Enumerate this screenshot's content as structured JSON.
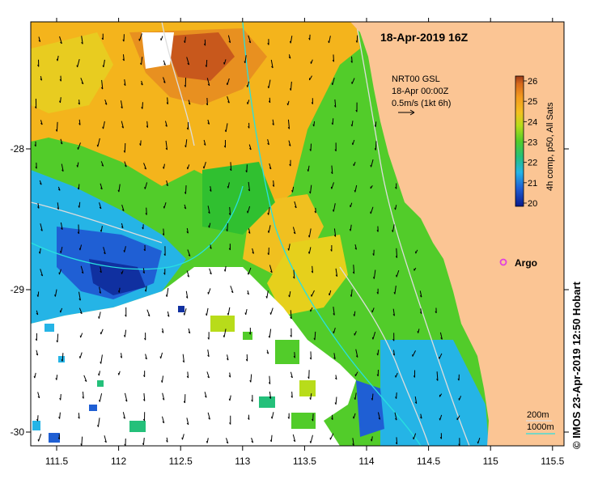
{
  "title": "18-Apr-2019 16Z",
  "velocity_legend": {
    "line1": "NRT00 GSL",
    "line2": "18-Apr 00:00Z",
    "line3": "0.5m/s (1kt 6h)"
  },
  "colorbar": {
    "label": "4h comp, p50, All Sats",
    "ticks": [
      "20",
      "21",
      "22",
      "23",
      "24",
      "25",
      "26"
    ],
    "colors": [
      "#0a1a8c",
      "#1f5fd4",
      "#25b4e6",
      "#24c07a",
      "#52cc2a",
      "#b8dc1a",
      "#f4c020",
      "#f39a1e",
      "#d86a1c",
      "#9c3a18"
    ]
  },
  "argo_label": "Argo",
  "depth_legend": {
    "d1": "200m",
    "d2": "1000m"
  },
  "credit": "© IMOS 23-Apr-2019 12:50 Hobart",
  "x_ticks": [
    "111.5",
    "112",
    "112.5",
    "113",
    "113.5",
    "114",
    "114.5",
    "115",
    "115.5"
  ],
  "y_ticks": [
    "-28",
    "-29",
    "-30"
  ],
  "map_colors": {
    "land": "#fbc594",
    "no_data": "#ffffff",
    "bathy_200": "#dddddd",
    "bathy_1000": "#28e0e0",
    "argo": "#e040e0"
  }
}
